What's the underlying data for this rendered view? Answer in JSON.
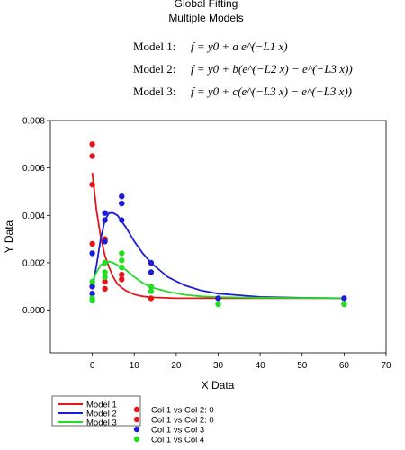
{
  "chart_data": {
    "type": "scatter",
    "title": "Global Fitting",
    "subtitle": "Multiple Models",
    "equations": [
      {
        "label": "Model 1:",
        "formula": "f = y0 + a e^(−L1 x)"
      },
      {
        "label": "Model 2:",
        "formula": "f = y0 + b(e^(−L2 x) − e^(−L3 x))"
      },
      {
        "label": "Model 3:",
        "formula": "f = y0 + c(e^(−L3 x) − e^(−L3 x))"
      }
    ],
    "xlabel": "X Data",
    "ylabel": "Y Data",
    "xlim": [
      -10,
      70
    ],
    "ylim": [
      -0.0018,
      0.008
    ],
    "xticks": [
      0,
      10,
      20,
      30,
      40,
      50,
      60,
      70
    ],
    "yticks": [
      0.0,
      0.002,
      0.004,
      0.006,
      0.008
    ],
    "ytick_labels": [
      "0.000",
      "0.002",
      "0.004",
      "0.006",
      "0.008"
    ],
    "grid": false,
    "legend_position": "bottom-left",
    "colors": {
      "red": "#e3161b",
      "blue": "#1c1cd6",
      "green": "#22dd22"
    },
    "series": [
      {
        "name": "Col 1 vs Col 2: 0",
        "color": "#e3161b",
        "kind": "points",
        "points": [
          [
            0,
            0.007
          ],
          [
            0,
            0.0065
          ],
          [
            0,
            0.0053
          ],
          [
            0,
            0.0028
          ],
          [
            3,
            0.003
          ],
          [
            3,
            0.0012
          ],
          [
            3,
            0.0009
          ],
          [
            7,
            0.0015
          ],
          [
            7,
            0.0013
          ],
          [
            14,
            0.0005
          ]
        ]
      },
      {
        "name": "Col 1 vs Col 2: 0",
        "color": "#e3161b",
        "kind": "points",
        "points": []
      },
      {
        "name": "Col 1 vs Col 3",
        "color": "#1c1cd6",
        "kind": "points",
        "points": [
          [
            0,
            0.0024
          ],
          [
            0,
            0.001
          ],
          [
            0,
            0.0007
          ],
          [
            3,
            0.0041
          ],
          [
            3,
            0.0038
          ],
          [
            3,
            0.0029
          ],
          [
            7,
            0.0048
          ],
          [
            7,
            0.0045
          ],
          [
            7,
            0.0038
          ],
          [
            14,
            0.002
          ],
          [
            14,
            0.0016
          ],
          [
            30,
            0.0005
          ],
          [
            60,
            0.0005
          ]
        ]
      },
      {
        "name": "Col 1 vs Col 4",
        "color": "#22dd22",
        "kind": "points",
        "points": [
          [
            0,
            0.0012
          ],
          [
            0,
            0.0005
          ],
          [
            0,
            0.0004
          ],
          [
            3,
            0.002
          ],
          [
            3,
            0.0016
          ],
          [
            3,
            0.0014
          ],
          [
            7,
            0.0024
          ],
          [
            7,
            0.0021
          ],
          [
            7,
            0.0018
          ],
          [
            14,
            0.001
          ],
          [
            14,
            0.0008
          ],
          [
            30,
            0.00025
          ],
          [
            60,
            0.00025
          ]
        ]
      },
      {
        "name": "Model 1",
        "color": "#e3161b",
        "kind": "line",
        "points": [
          [
            0,
            0.0058
          ],
          [
            1,
            0.0042
          ],
          [
            2,
            0.0031
          ],
          [
            3,
            0.0023
          ],
          [
            4,
            0.0018
          ],
          [
            5,
            0.0014
          ],
          [
            6,
            0.0011
          ],
          [
            7,
            0.00095
          ],
          [
            8,
            0.00082
          ],
          [
            10,
            0.00066
          ],
          [
            12,
            0.00058
          ],
          [
            14,
            0.00054
          ],
          [
            20,
            0.0005
          ],
          [
            30,
            0.0005
          ],
          [
            60,
            0.0005
          ]
        ]
      },
      {
        "name": "Model 2",
        "color": "#1c1cd6",
        "kind": "line",
        "points": [
          [
            0,
            0.0009
          ],
          [
            1,
            0.0019
          ],
          [
            2,
            0.003
          ],
          [
            3,
            0.0038
          ],
          [
            4,
            0.0041
          ],
          [
            5,
            0.0041
          ],
          [
            6,
            0.004
          ],
          [
            8,
            0.0035
          ],
          [
            10,
            0.0029
          ],
          [
            12,
            0.0024
          ],
          [
            14,
            0.002
          ],
          [
            18,
            0.0014
          ],
          [
            22,
            0.00105
          ],
          [
            26,
            0.00083
          ],
          [
            30,
            0.0007
          ],
          [
            40,
            0.00056
          ],
          [
            50,
            0.00052
          ],
          [
            60,
            0.0005
          ]
        ]
      },
      {
        "name": "Model 3",
        "color": "#22dd22",
        "kind": "line",
        "points": [
          [
            0,
            0.0012
          ],
          [
            1,
            0.0016
          ],
          [
            2,
            0.0019
          ],
          [
            3,
            0.002
          ],
          [
            4,
            0.00205
          ],
          [
            5,
            0.002
          ],
          [
            6,
            0.0019
          ],
          [
            8,
            0.0017
          ],
          [
            10,
            0.0014
          ],
          [
            12,
            0.00115
          ],
          [
            14,
            0.00097
          ],
          [
            18,
            0.00078
          ],
          [
            22,
            0.00065
          ],
          [
            26,
            0.00058
          ],
          [
            30,
            0.00055
          ],
          [
            40,
            0.00052
          ],
          [
            60,
            0.0005
          ]
        ]
      }
    ]
  }
}
